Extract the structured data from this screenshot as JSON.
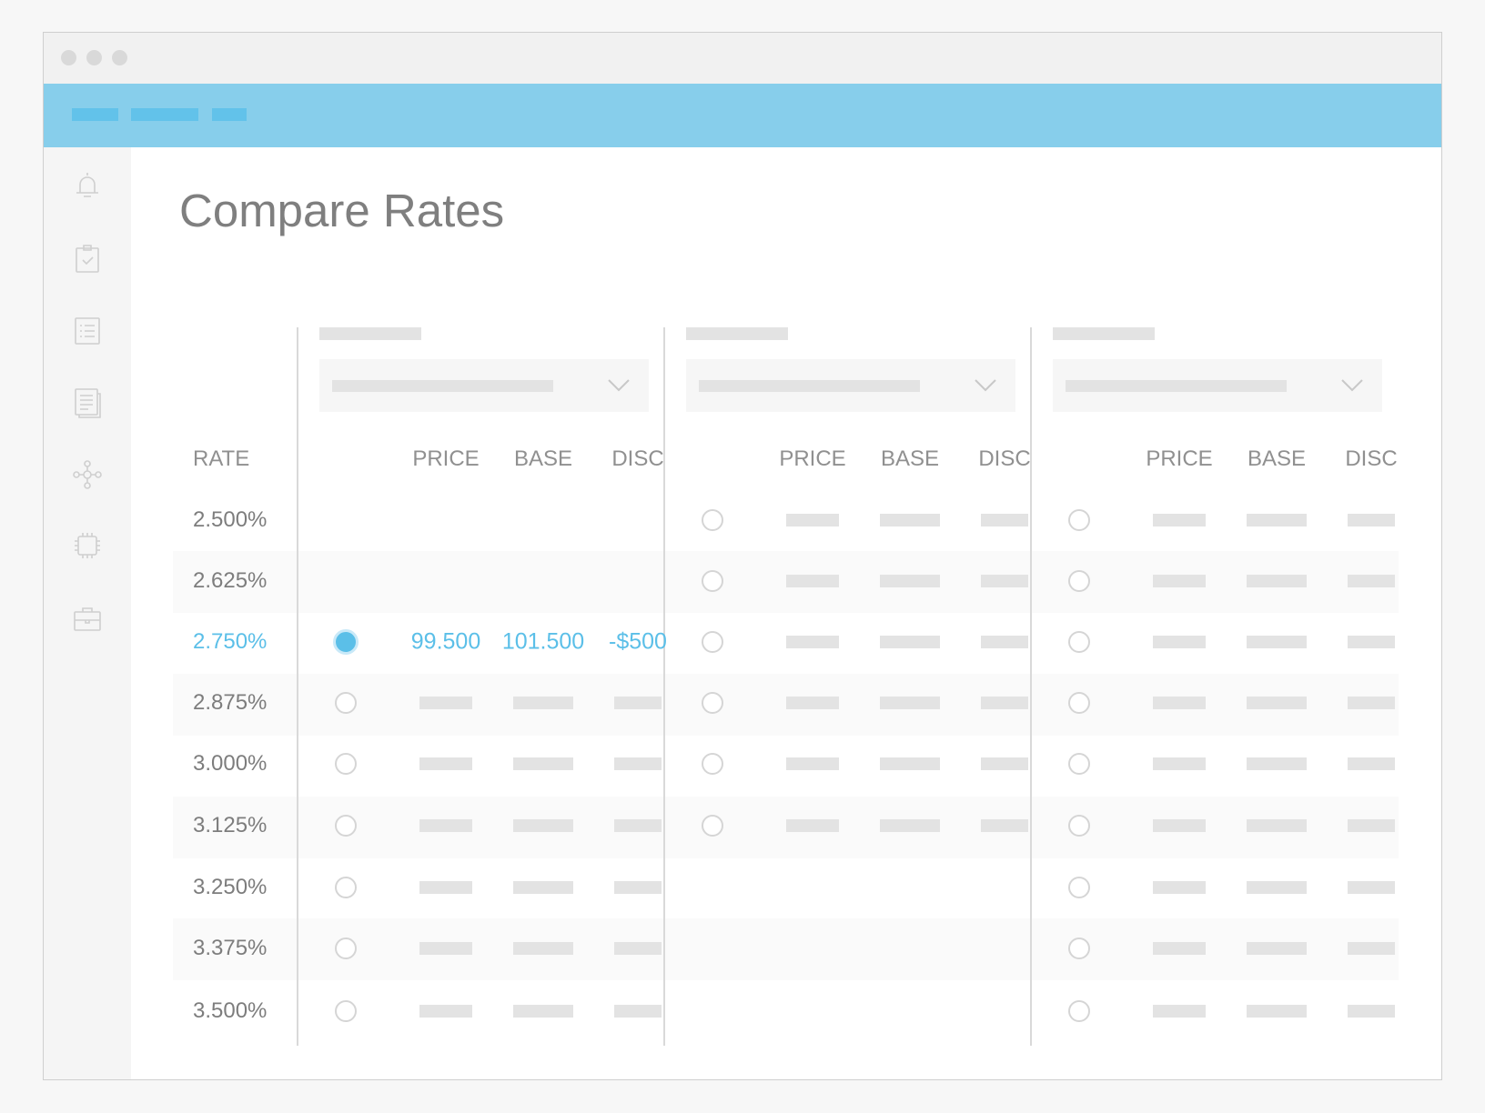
{
  "page": {
    "title": "Compare Rates"
  },
  "sidebar": {
    "icons": [
      "bell-icon",
      "clipboard-check-icon",
      "list-icon",
      "document-icon",
      "network-icon",
      "chip-icon",
      "briefcase-icon"
    ]
  },
  "table": {
    "rate_header": "RATE",
    "sub_headers": [
      "PRICE",
      "BASE",
      "DISC"
    ],
    "rates": [
      "2.500%",
      "2.625%",
      "2.750%",
      "2.875%",
      "3.000%",
      "3.125%",
      "3.250%",
      "3.375%",
      "3.500%"
    ],
    "selected_row": 2,
    "selected_values": {
      "price": "99.500",
      "base": "101.500",
      "disc": "-$500"
    }
  },
  "colors": {
    "accent": "#5bbfe8",
    "appbar": "#87ceeb"
  }
}
